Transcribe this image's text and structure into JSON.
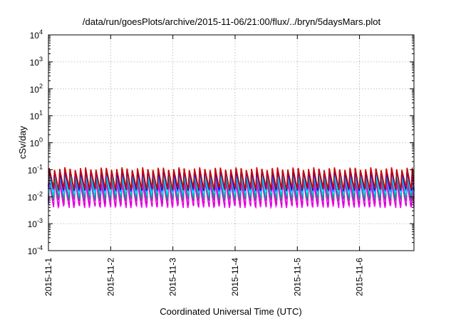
{
  "chart_data": {
    "type": "line",
    "title": "/data/run/goesPlots/archive/2015-11-06/21:00/flux/../bryn/5daysMars.plot",
    "xlabel": "Coordinated Universal Time (UTC)",
    "ylabel": "cSv/day",
    "yscale": "log",
    "ylim": [
      0.0001,
      10000
    ],
    "xlim": [
      "2015-11-01T00:00",
      "2015-11-06T21:00"
    ],
    "grid": true,
    "x_ticks": [
      "2015-11-1",
      "2015-11-2",
      "2015-11-3",
      "2015-11-4",
      "2015-11-5",
      "2015-11-6"
    ],
    "y_ticks": [
      {
        "value": 0.0001,
        "base": "10",
        "exp": "-4"
      },
      {
        "value": 0.001,
        "base": "10",
        "exp": "-3"
      },
      {
        "value": 0.01,
        "base": "10",
        "exp": "-2"
      },
      {
        "value": 0.1,
        "base": "10",
        "exp": "-1"
      },
      {
        "value": 1,
        "base": "10",
        "exp": "0"
      },
      {
        "value": 10,
        "base": "10",
        "exp": "1"
      },
      {
        "value": 100,
        "base": "10",
        "exp": "2"
      },
      {
        "value": 1000,
        "base": "10",
        "exp": "3"
      },
      {
        "value": 10000,
        "base": "10",
        "exp": "4"
      }
    ],
    "pattern": {
      "cycle_hours": 2,
      "note_hidden": false
    },
    "series": [
      {
        "color": "#ff00ff",
        "peak": 0.035,
        "trough": 0.0045
      },
      {
        "color": "#cc00cc",
        "peak": 0.045,
        "trough": 0.0055
      },
      {
        "color": "#ff33ff",
        "peak": 0.05,
        "trough": 0.007
      },
      {
        "color": "#993399",
        "peak": 0.055,
        "trough": 0.008
      },
      {
        "color": "#009999",
        "peak": 0.065,
        "trough": 0.01
      },
      {
        "color": "#00cccc",
        "peak": 0.075,
        "trough": 0.013
      },
      {
        "color": "#00ffff",
        "peak": 0.08,
        "trough": 0.016
      },
      {
        "color": "#3366ff",
        "peak": 0.085,
        "trough": 0.018
      },
      {
        "color": "#0000ff",
        "peak": 0.095,
        "trough": 0.02
      },
      {
        "color": "#cc0000",
        "peak": 0.11,
        "trough": 0.022
      }
    ]
  }
}
